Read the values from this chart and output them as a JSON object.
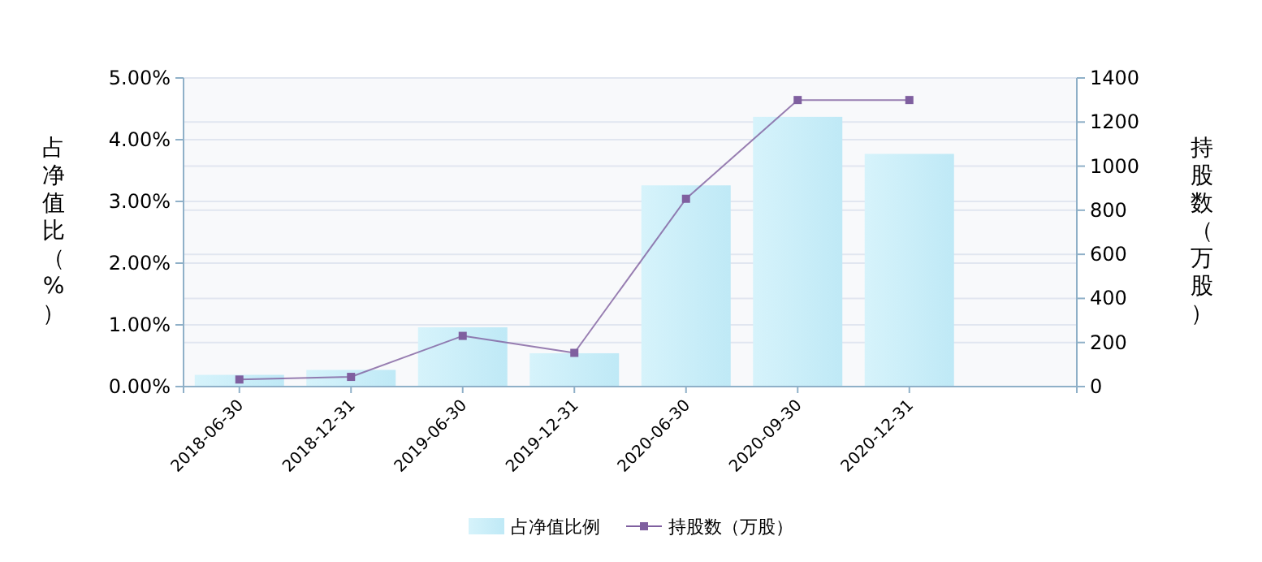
{
  "chart_data": {
    "type": "bar",
    "categories": [
      "2018-06-30",
      "2018-12-31",
      "2019-06-30",
      "2019-12-31",
      "2020-06-30",
      "2020-09-30",
      "2020-12-31"
    ],
    "series": [
      {
        "name": "占净值比例",
        "color": "#bfe9f6",
        "values": [
          0.19,
          0.27,
          0.96,
          0.54,
          3.26,
          4.37,
          3.77
        ]
      },
      {
        "name": "持股数（万股）",
        "type": "line",
        "axis": "y2",
        "color": "#7f5f9f",
        "values": [
          32,
          44,
          230,
          153,
          852,
          1300,
          1300
        ]
      }
    ],
    "ylabel": "占净值比（%）",
    "y2label": "持股数（万股）",
    "ylim": [
      0,
      5
    ],
    "yticks": [
      {
        "value": 0,
        "label": "0.00%"
      },
      {
        "value": 1,
        "label": "1.00%"
      },
      {
        "value": 2,
        "label": "2.00%"
      },
      {
        "value": 3,
        "label": "3.00%"
      },
      {
        "value": 4,
        "label": "4.00%"
      },
      {
        "value": 5,
        "label": "5.00%"
      }
    ],
    "y2lim": [
      0,
      1400
    ],
    "y2ticks": [
      0,
      200,
      400,
      600,
      800,
      1000,
      1200,
      1400
    ],
    "grid": "y",
    "legend": "bottom",
    "marker": "square",
    "line_style": "solid"
  }
}
